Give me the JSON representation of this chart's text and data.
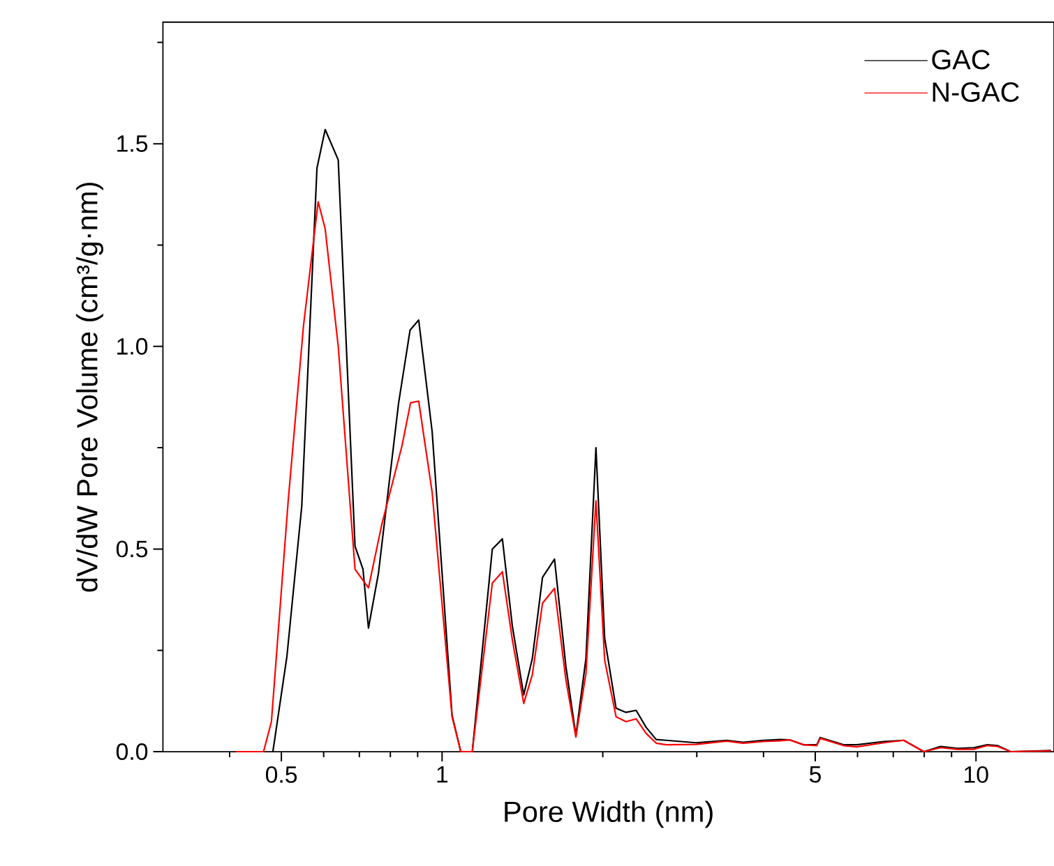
{
  "chart_data": {
    "type": "line",
    "xlabel": "Pore Width (nm)",
    "ylabel": "dV/dW Pore Volume (cm³/g·nm)",
    "log": "x",
    "xlim": [
      0.3,
      14
    ],
    "ylim": [
      0,
      1.8
    ],
    "xticks": [
      {
        "value": 0.4,
        "label": null
      },
      0.5,
      {
        "value": 0.6,
        "label": null
      },
      {
        "value": 0.7,
        "label": null
      },
      {
        "value": 0.8,
        "label": null
      },
      {
        "value": 0.9,
        "label": null
      },
      1,
      {
        "value": 2,
        "label": null
      },
      {
        "value": 3,
        "label": null
      },
      {
        "value": 4,
        "label": null
      },
      5,
      {
        "value": 6,
        "label": null
      },
      {
        "value": 7,
        "label": null
      },
      {
        "value": 8,
        "label": null
      },
      {
        "value": 9,
        "label": null
      },
      10
    ],
    "yticks": [
      {
        "value": 0,
        "label": "0.0"
      },
      {
        "value": 0.25,
        "label": null
      },
      0.5,
      {
        "value": 0.75,
        "label": null
      },
      {
        "value": 1,
        "label": "1.0"
      },
      {
        "value": 1.25,
        "label": null
      },
      1.5,
      {
        "value": 1.75,
        "label": null
      }
    ],
    "legend": "top right",
    "marker": "none",
    "series": [
      {
        "name": "GAC",
        "color": "#000000",
        "x": [
          0.482,
          0.512,
          0.546,
          0.583,
          0.604,
          0.639,
          0.687,
          0.711,
          0.728,
          0.76,
          0.829,
          0.871,
          0.904,
          0.958,
          1.044,
          1.084,
          1.139,
          1.242,
          1.297,
          1.354,
          1.422,
          1.476,
          1.542,
          1.624,
          1.706,
          1.781,
          1.86,
          1.942,
          2.016,
          2.118,
          2.211,
          2.309,
          2.411,
          2.518,
          2.63,
          2.993,
          3.409,
          3.664,
          3.997,
          4.295,
          4.484,
          4.751,
          5.033,
          5.106,
          5.648,
          5.982,
          6.716,
          7.323,
          7.988,
          8.584,
          9.224,
          9.913,
          10.5,
          10.97,
          11.62,
          13.82
        ],
        "values": [
          0,
          0.234,
          0.606,
          1.44,
          1.535,
          1.46,
          0.507,
          0.45,
          0.305,
          0.44,
          0.86,
          1.04,
          1.065,
          0.79,
          0.09,
          0,
          0,
          0.5,
          0.525,
          0.31,
          0.14,
          0.23,
          0.43,
          0.475,
          0.21,
          0.04,
          0.23,
          0.75,
          0.28,
          0.107,
          0.097,
          0.102,
          0.06,
          0.03,
          0.028,
          0.022,
          0.028,
          0.023,
          0.028,
          0.03,
          0.029,
          0.017,
          0.017,
          0.035,
          0.017,
          0.017,
          0.025,
          0.028,
          0,
          0.013,
          0.008,
          0.01,
          0.017,
          0.015,
          0,
          0.003
        ]
      },
      {
        "name": "N-GAC",
        "color": "#ff0000",
        "x": [
          0.411,
          0.463,
          0.479,
          0.515,
          0.55,
          0.586,
          0.604,
          0.639,
          0.687,
          0.728,
          0.771,
          0.841,
          0.873,
          0.904,
          0.958,
          1.044,
          1.084,
          1.139,
          1.242,
          1.297,
          1.354,
          1.422,
          1.476,
          1.542,
          1.624,
          1.706,
          1.781,
          1.86,
          1.942,
          2.016,
          2.118,
          2.211,
          2.309,
          2.411,
          2.518,
          2.63,
          2.993,
          3.409,
          3.664,
          3.997,
          4.295,
          4.484,
          4.751,
          5.033,
          5.106,
          5.648,
          5.982,
          6.716,
          7.323,
          7.988,
          8.584,
          9.224,
          9.913,
          10.5,
          10.97,
          11.62,
          13.82
        ],
        "values": [
          0,
          0,
          0.074,
          0.62,
          1.05,
          1.357,
          1.29,
          1.0,
          0.45,
          0.404,
          0.56,
          0.754,
          0.861,
          0.865,
          0.64,
          0.086,
          0,
          0,
          0.416,
          0.444,
          0.276,
          0.119,
          0.19,
          0.366,
          0.403,
          0.177,
          0.036,
          0.193,
          0.619,
          0.226,
          0.086,
          0.074,
          0.081,
          0.045,
          0.021,
          0.017,
          0.018,
          0.026,
          0.021,
          0.025,
          0.027,
          0.029,
          0.017,
          0.015,
          0.033,
          0.015,
          0.012,
          0.022,
          0.028,
          0,
          0.01,
          0.006,
          0.006,
          0.015,
          0.013,
          0,
          0.002
        ]
      }
    ]
  }
}
